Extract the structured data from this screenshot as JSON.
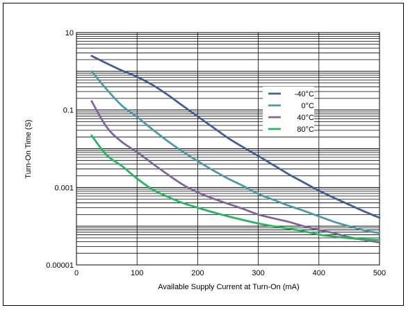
{
  "chart_data": {
    "type": "line",
    "title": "",
    "xlabel": "Available Supply Current at Turn-On (mA)",
    "ylabel": "Turn-On Time (S)",
    "xlim": [
      0,
      500
    ],
    "ylim": [
      1e-05,
      10
    ],
    "y_scale": "log",
    "grid": true,
    "legend_position": "top-right",
    "x_ticks": [
      "0",
      "100",
      "200",
      "300",
      "400",
      "500"
    ],
    "y_ticks": [
      "0.00001",
      "0.001",
      "0.1",
      "10"
    ],
    "series": [
      {
        "name": "-40°C",
        "color": "#3f5e9c",
        "points": [
          [
            25,
            2.5
          ],
          [
            50,
            1.6
          ],
          [
            75,
            1.05
          ],
          [
            100,
            0.72
          ],
          [
            125,
            0.45
          ],
          [
            150,
            0.25
          ],
          [
            175,
            0.13
          ],
          [
            200,
            0.068
          ],
          [
            225,
            0.036
          ],
          [
            250,
            0.019
          ],
          [
            275,
            0.011
          ],
          [
            300,
            0.0065
          ],
          [
            325,
            0.0038
          ],
          [
            350,
            0.0022
          ],
          [
            375,
            0.00135
          ],
          [
            400,
            0.00083
          ],
          [
            425,
            0.00054
          ],
          [
            450,
            0.00036
          ],
          [
            475,
            0.00024
          ],
          [
            500,
            0.000165
          ]
        ]
      },
      {
        "name": "0°C",
        "color": "#4a9aad",
        "points": [
          [
            25,
            1.0
          ],
          [
            50,
            0.34
          ],
          [
            75,
            0.13
          ],
          [
            100,
            0.066
          ],
          [
            125,
            0.032
          ],
          [
            150,
            0.016
          ],
          [
            175,
            0.0085
          ],
          [
            200,
            0.0048
          ],
          [
            225,
            0.0028
          ],
          [
            250,
            0.0017
          ],
          [
            275,
            0.0011
          ],
          [
            300,
            0.00068
          ],
          [
            325,
            0.00048
          ],
          [
            350,
            0.00034
          ],
          [
            375,
            0.00025
          ],
          [
            400,
            0.00018
          ],
          [
            425,
            0.00013
          ],
          [
            450,
            0.0001
          ],
          [
            475,
            7.8e-05
          ],
          [
            500,
            6.6e-05
          ]
        ]
      },
      {
        "name": "40°C",
        "color": "#8064a2",
        "points": [
          [
            25,
            0.17
          ],
          [
            50,
            0.036
          ],
          [
            75,
            0.015
          ],
          [
            100,
            0.0082
          ],
          [
            125,
            0.0042
          ],
          [
            150,
            0.0022
          ],
          [
            175,
            0.0012
          ],
          [
            200,
            0.00075
          ],
          [
            225,
            0.00052
          ],
          [
            250,
            0.00038
          ],
          [
            275,
            0.00028
          ],
          [
            300,
            0.0002
          ],
          [
            325,
            0.00016
          ],
          [
            350,
            0.00013
          ],
          [
            375,
            0.0001
          ],
          [
            400,
            8e-05
          ],
          [
            425,
            6.6e-05
          ],
          [
            450,
            5.2e-05
          ],
          [
            475,
            4.4e-05
          ],
          [
            500,
            3.8e-05
          ]
        ]
      },
      {
        "name": "80°C",
        "color": "#1dbb5a",
        "points": [
          [
            25,
            0.022
          ],
          [
            50,
            0.0068
          ],
          [
            75,
            0.0036
          ],
          [
            100,
            0.0017
          ],
          [
            125,
            0.0009
          ],
          [
            150,
            0.00058
          ],
          [
            175,
            0.0004
          ],
          [
            200,
            0.0003
          ],
          [
            225,
            0.00023
          ],
          [
            250,
            0.00018
          ],
          [
            275,
            0.000145
          ],
          [
            300,
            0.000118
          ],
          [
            325,
            0.0001
          ],
          [
            350,
            8.6e-05
          ],
          [
            375,
            7.4e-05
          ],
          [
            400,
            6.1e-05
          ],
          [
            425,
            5.4e-05
          ],
          [
            450,
            4.9e-05
          ],
          [
            475,
            4.6e-05
          ],
          [
            500,
            4.4e-05
          ]
        ]
      }
    ]
  }
}
